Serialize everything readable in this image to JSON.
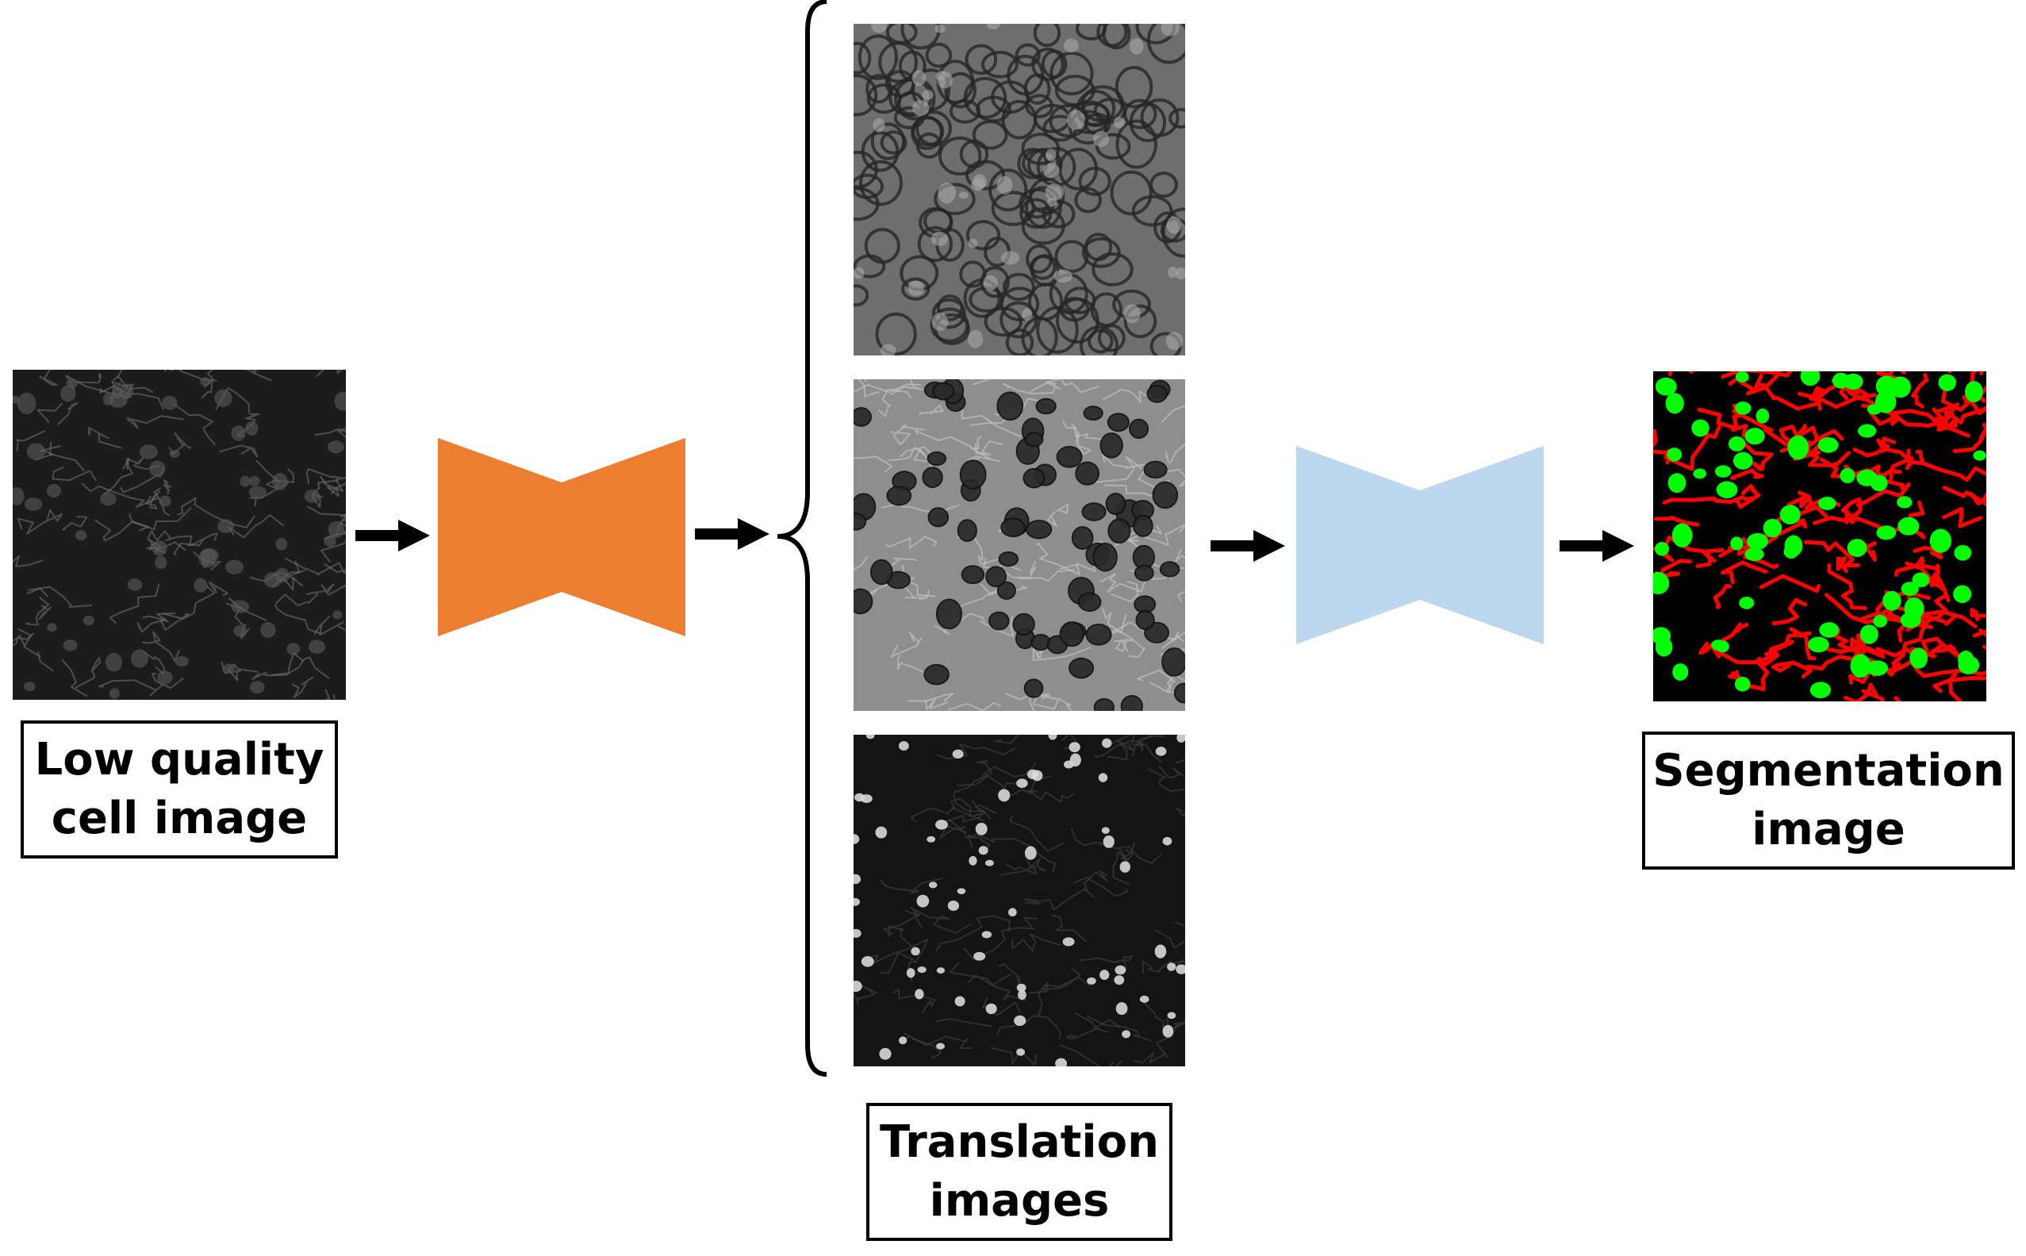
{
  "labels": {
    "input_line1": "Low quality",
    "input_line2": "cell image",
    "translation_line1": "Translation",
    "translation_line2": "images",
    "segmentation_line1": "Segmentation",
    "segmentation_line2": "image"
  },
  "colors": {
    "translation_network": "#ED7D31",
    "segmentation_network": "#BDD7EE",
    "membrane": "#FF0000",
    "nucleus": "#00FF00",
    "background": "#000000"
  },
  "icons": {
    "network_a": "bowtie-encoder-decoder-icon",
    "network_b": "bowtie-encoder-decoder-icon",
    "flow": "right-arrow-icon",
    "group": "curly-brace-icon"
  }
}
